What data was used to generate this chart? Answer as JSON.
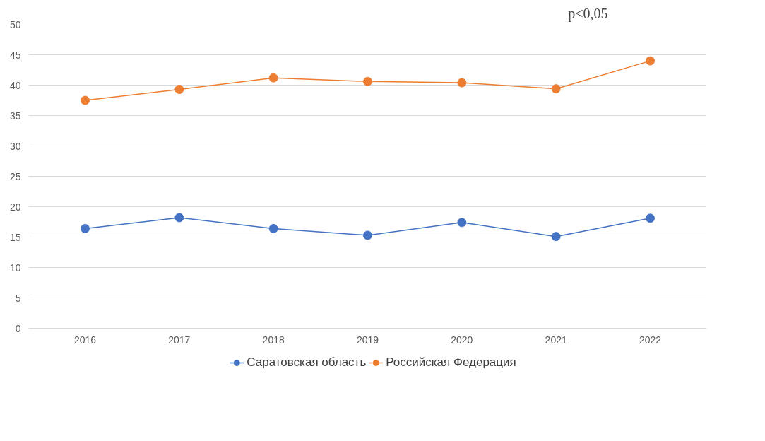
{
  "chart_data": {
    "type": "line",
    "categories": [
      "2016",
      "2017",
      "2018",
      "2019",
      "2020",
      "2021",
      "2022"
    ],
    "series": [
      {
        "name": "Саратовская область",
        "color": "#4472c4",
        "values": [
          16.4,
          18.2,
          16.4,
          15.3,
          17.4,
          15.1,
          18.1
        ]
      },
      {
        "name": "Российская Федерация",
        "color": "#ed7d31",
        "values": [
          37.5,
          39.3,
          41.2,
          40.6,
          40.4,
          39.4,
          44.0
        ]
      }
    ],
    "ylim": [
      0,
      50
    ],
    "yticks": [
      0,
      5,
      10,
      15,
      20,
      25,
      30,
      35,
      40,
      45,
      50
    ],
    "grid": "y",
    "legend": "bottom",
    "marker": "circle",
    "line_style": "solid",
    "annotations": [
      "p<0,05"
    ]
  }
}
